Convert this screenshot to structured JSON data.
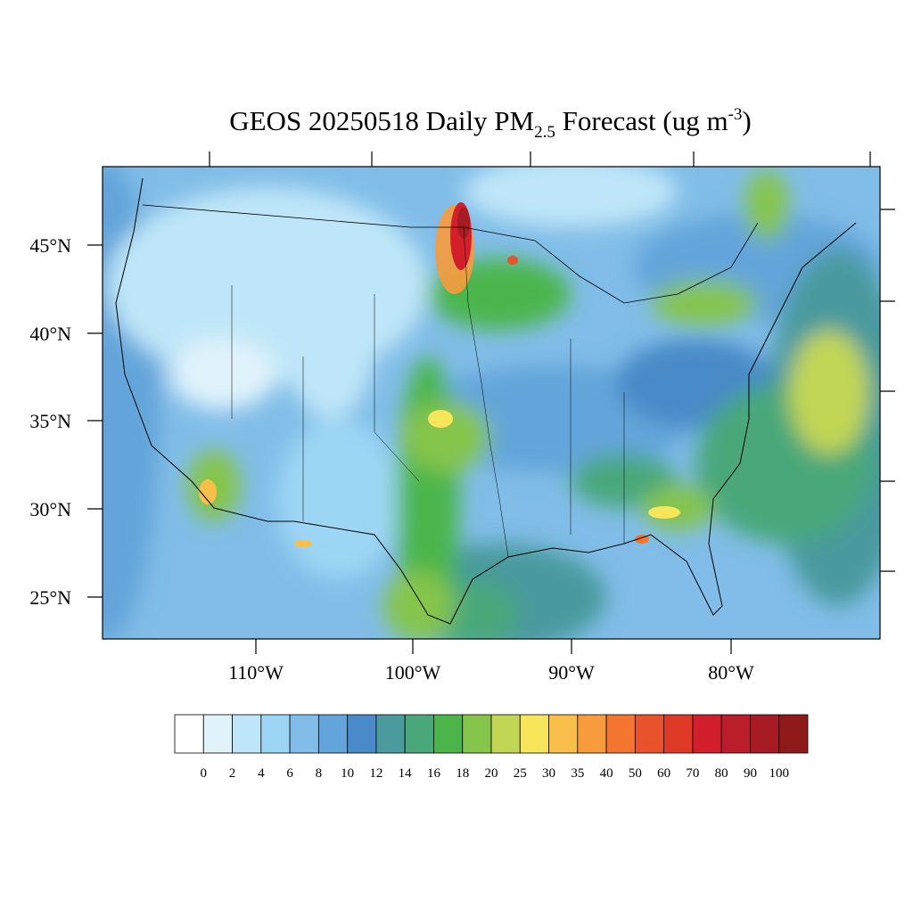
{
  "title": {
    "main": "GEOS 20250518 Daily PM",
    "subscript": "2.5",
    "middle": " Forecast (ug m",
    "superscript": "-3",
    "end": ")"
  },
  "lat_labels": [
    "45°N",
    "40°N",
    "35°N",
    "30°N",
    "25°N"
  ],
  "lon_labels": [
    "110°W",
    "100°W",
    "90°W",
    "80°W"
  ],
  "colorbar": {
    "colors": [
      "#ffffff",
      "#e0f3fb",
      "#bfe6f8",
      "#9dd6f4",
      "#81bde8",
      "#63a5da",
      "#4a8ac8",
      "#4a9a9e",
      "#49a77a",
      "#4bb54c",
      "#85c54c",
      "#c2d655",
      "#f7e659",
      "#f8bf4a",
      "#f79b3c",
      "#f37530",
      "#e9532c",
      "#de3a27",
      "#d31f2b",
      "#bb1d2b",
      "#a71b22",
      "#8e1a1a"
    ],
    "labels": [
      0,
      2,
      4,
      6,
      8,
      10,
      12,
      14,
      16,
      18,
      20,
      25,
      30,
      35,
      40,
      50,
      60,
      70,
      80,
      90,
      100
    ]
  }
}
